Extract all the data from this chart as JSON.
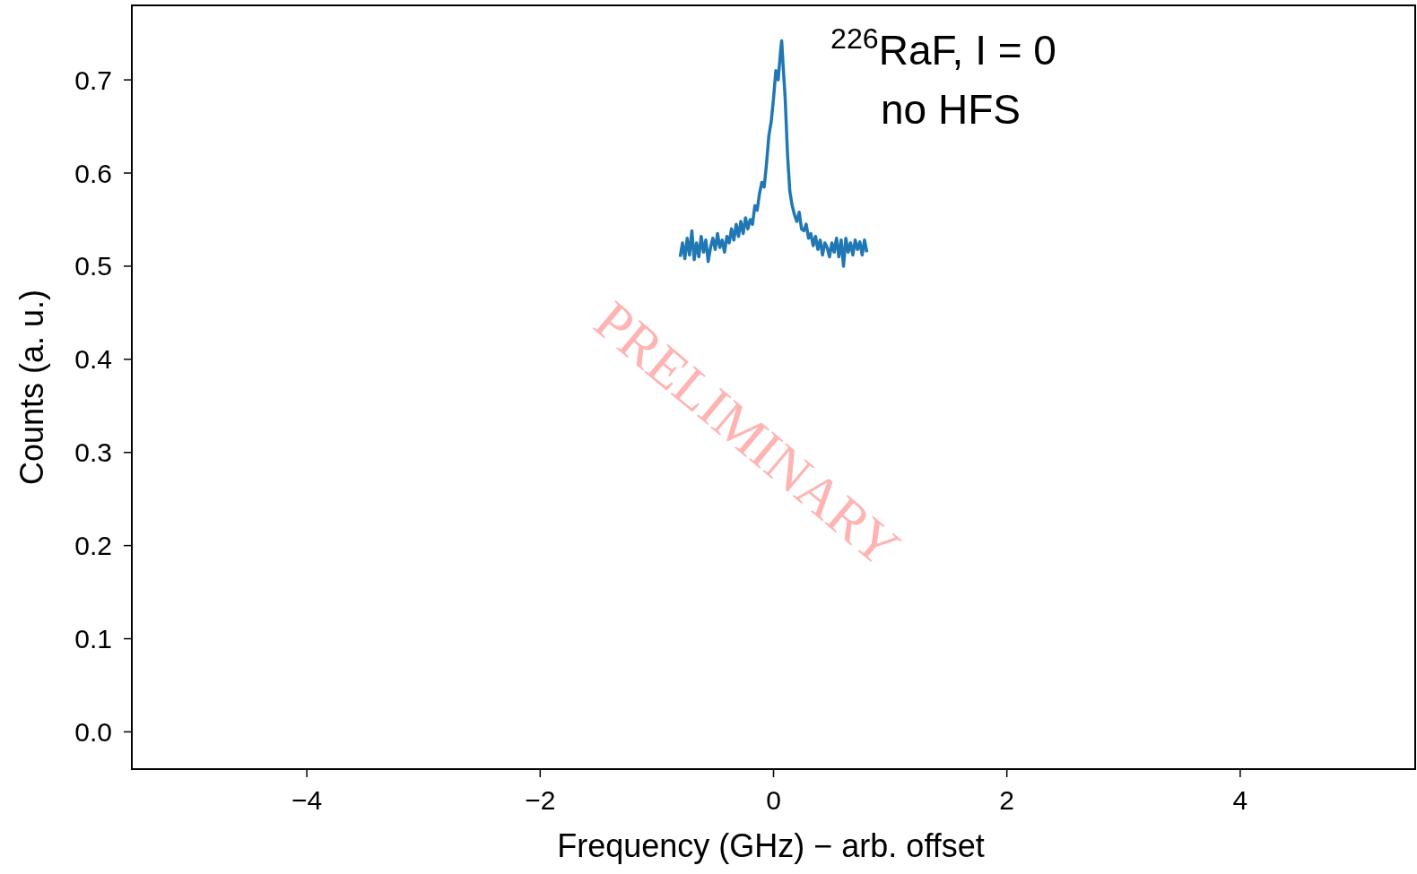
{
  "chart_data": {
    "type": "line",
    "xlabel": "Frequency (GHz) − arb. offset",
    "ylabel": "Counts (a. u.)",
    "xlim": [
      -5.5,
      5.5
    ],
    "ylim": [
      -0.04,
      0.78
    ],
    "xticks": [
      {
        "value": -4,
        "label": "−4"
      },
      {
        "value": -2,
        "label": "−2"
      },
      0,
      2,
      4
    ],
    "yticks": [
      {
        "value": 0,
        "label": "0.0"
      },
      0.1,
      0.2,
      0.3,
      0.4,
      0.5,
      0.6,
      0.7
    ],
    "grid": false,
    "marker": "none",
    "line_style": "solid",
    "annotations": [
      "$^{226}$RaF, I = 0",
      "no HFS",
      "PRELIMINARY"
    ],
    "series": [
      {
        "color": "#1f77b4",
        "x": [
          -0.8,
          -0.78,
          -0.76,
          -0.74,
          -0.72,
          -0.7,
          -0.68,
          -0.66,
          -0.64,
          -0.62,
          -0.6,
          -0.58,
          -0.56,
          -0.54,
          -0.52,
          -0.5,
          -0.48,
          -0.46,
          -0.44,
          -0.42,
          -0.4,
          -0.38,
          -0.36,
          -0.34,
          -0.32,
          -0.3,
          -0.28,
          -0.26,
          -0.24,
          -0.22,
          -0.2,
          -0.18,
          -0.16,
          -0.14,
          -0.12,
          -0.1,
          -0.08,
          -0.06,
          -0.04,
          -0.02,
          0,
          0.02,
          0.04,
          0.06,
          0.07,
          0.08,
          0.1,
          0.12,
          0.14,
          0.16,
          0.18,
          0.2,
          0.22,
          0.24,
          0.26,
          0.28,
          0.3,
          0.32,
          0.34,
          0.36,
          0.38,
          0.4,
          0.42,
          0.44,
          0.46,
          0.48,
          0.5,
          0.52,
          0.54,
          0.56,
          0.58,
          0.6,
          0.62,
          0.64,
          0.66,
          0.68,
          0.7,
          0.72,
          0.74,
          0.76,
          0.78,
          0.8
        ],
        "values": [
          0.51,
          0.525,
          0.508,
          0.53,
          0.512,
          0.538,
          0.507,
          0.525,
          0.51,
          0.532,
          0.515,
          0.528,
          0.505,
          0.52,
          0.53,
          0.518,
          0.535,
          0.52,
          0.528,
          0.515,
          0.532,
          0.525,
          0.54,
          0.528,
          0.545,
          0.532,
          0.548,
          0.535,
          0.552,
          0.54,
          0.55,
          0.545,
          0.565,
          0.56,
          0.578,
          0.59,
          0.585,
          0.61,
          0.64,
          0.655,
          0.68,
          0.71,
          0.7,
          0.73,
          0.742,
          0.72,
          0.68,
          0.62,
          0.58,
          0.565,
          0.555,
          0.548,
          0.558,
          0.54,
          0.538,
          0.545,
          0.53,
          0.535,
          0.522,
          0.532,
          0.518,
          0.528,
          0.512,
          0.525,
          0.52,
          0.51,
          0.525,
          0.515,
          0.53,
          0.51,
          0.528,
          0.5,
          0.53,
          0.515,
          0.525,
          0.512,
          0.528,
          0.518,
          0.526,
          0.512,
          0.528,
          0.515
        ]
      }
    ]
  }
}
